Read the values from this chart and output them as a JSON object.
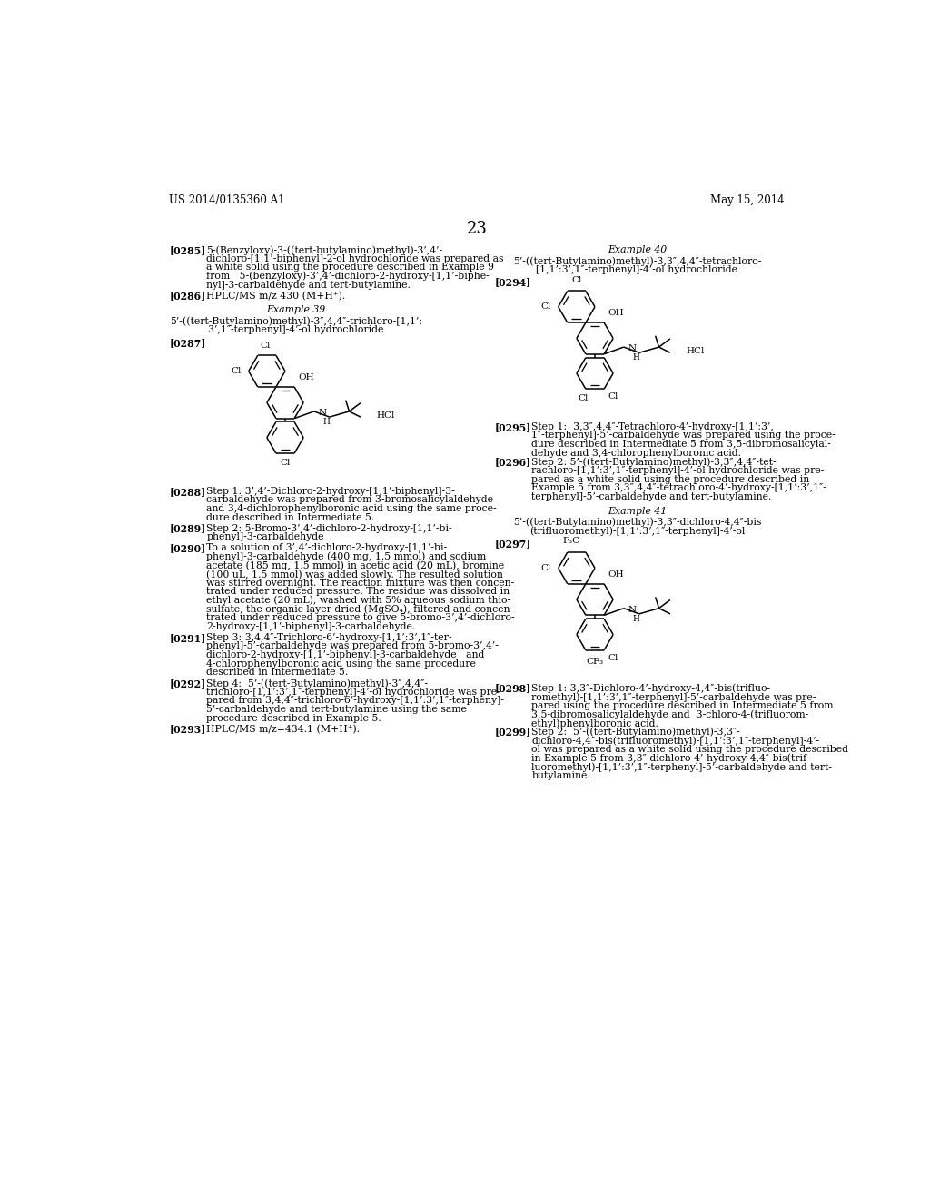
{
  "header_left": "US 2014/0135360 A1",
  "header_right": "May 15, 2014",
  "page_number": "23",
  "background_color": "#ffffff",
  "text_color": "#000000",
  "font_size_body": 7.8,
  "font_size_header": 8.5,
  "font_size_page": 13
}
